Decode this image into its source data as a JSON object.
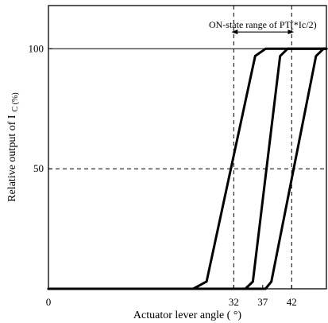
{
  "chart_data": {
    "type": "line",
    "title": "",
    "xlabel": "Actuator lever angle ( °)",
    "ylabel": "Relative output of I",
    "ylabel_sub": "C (%)",
    "xlim": [
      0,
      48
    ],
    "ylim": [
      0,
      118
    ],
    "xticks": [
      0,
      32,
      37,
      42
    ],
    "xtick_labels": [
      "0",
      "32",
      "37",
      "42"
    ],
    "yticks": [
      50,
      100
    ],
    "ytick_labels": [
      "50",
      "100"
    ],
    "grid": "dashed at x=32, x=42 and y=50",
    "legend": "none",
    "annotation": {
      "text": "ON-state range of PT(*Ic/2)",
      "x_from": 32,
      "x_to": 42,
      "y": 107
    },
    "series": [
      {
        "x": [
          0,
          25.0,
          27.3,
          35.7,
          37.5,
          48
        ],
        "y": [
          0,
          0,
          3,
          97,
          100,
          100
        ]
      },
      {
        "x": [
          0,
          34.0,
          35.3,
          40.0,
          41.3,
          48
        ],
        "y": [
          0,
          0,
          3,
          97,
          100,
          100
        ]
      },
      {
        "x": [
          0,
          37.5,
          38.5,
          46.2,
          47.5,
          48
        ],
        "y": [
          0,
          0,
          3,
          97,
          100,
          100
        ]
      }
    ],
    "colors": {
      "line": "#000000",
      "grid": "#000000",
      "background": "#ffffff"
    }
  }
}
